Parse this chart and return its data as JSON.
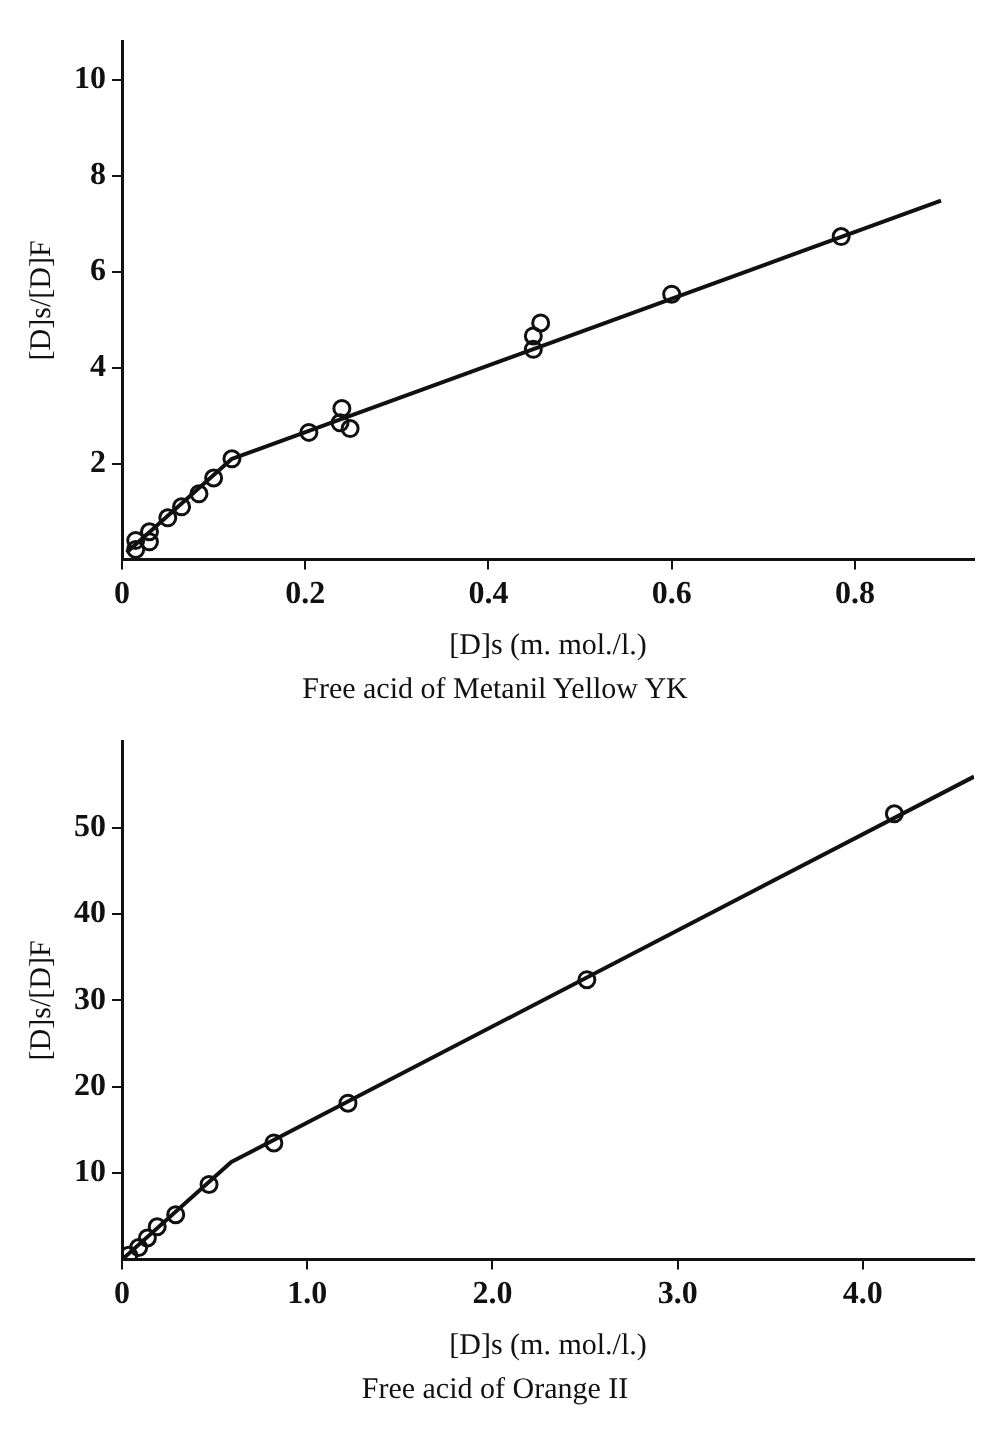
{
  "chart_data": [
    {
      "type": "scatter",
      "title": "Free acid of Metanil Yellow YK",
      "xlabel": "[D]s (m. mol./l.)",
      "ylabel": "[D]s/[D]F",
      "xlim": [
        0,
        0.93
      ],
      "ylim": [
        0,
        10.8
      ],
      "xticks": [
        0,
        0.2,
        0.4,
        0.6,
        0.8
      ],
      "yticks": [
        2,
        4,
        6,
        8,
        10
      ],
      "grid": false,
      "legend": false,
      "series": [
        {
          "type": "scatter",
          "marker": "circle",
          "color": "#111111",
          "x": [
            0.015,
            0.015,
            0.03,
            0.03,
            0.05,
            0.065,
            0.084,
            0.1,
            0.12,
            0.204,
            0.24,
            0.238,
            0.249,
            0.449,
            0.449,
            0.457,
            0.6,
            0.785
          ],
          "values": [
            0.21,
            0.4,
            0.58,
            0.37,
            0.87,
            1.1,
            1.37,
            1.7,
            2.1,
            2.65,
            3.15,
            2.85,
            2.73,
            4.38,
            4.66,
            4.93,
            5.53,
            6.73
          ]
        },
        {
          "type": "line",
          "marker": "none",
          "color": "#111111",
          "x": [
            0.005,
            0.12,
            0.894
          ],
          "values": [
            0.15,
            2.1,
            7.48
          ]
        }
      ]
    },
    {
      "type": "scatter",
      "title": "Free acid of Orange II",
      "xlabel": "[D]s (m. mol./l.)",
      "ylabel": "[D]s/[D]F",
      "xlim": [
        0,
        4.6
      ],
      "ylim": [
        0,
        60
      ],
      "xticks": [
        0,
        {
          "value": 1,
          "label": "1.0"
        },
        {
          "value": 2,
          "label": "2.0"
        },
        {
          "value": 3,
          "label": "3.0"
        },
        {
          "value": 4,
          "label": "4.0"
        }
      ],
      "yticks": [
        10,
        20,
        30,
        40,
        50
      ],
      "grid": false,
      "legend": false,
      "series": [
        {
          "type": "scatter",
          "marker": "circle",
          "color": "#111111",
          "x": [
            0.036,
            0.09,
            0.137,
            0.19,
            0.29,
            0.47,
            0.82,
            1.22,
            2.51,
            4.17
          ],
          "values": [
            0.5,
            1.4,
            2.5,
            3.8,
            5.2,
            8.7,
            13.5,
            18.1,
            32.4,
            51.6
          ]
        },
        {
          "type": "line",
          "marker": "none",
          "color": "#111111",
          "x": [
            0,
            0.59,
            4.6
          ],
          "values": [
            0,
            11.3,
            55.9
          ]
        }
      ]
    }
  ]
}
